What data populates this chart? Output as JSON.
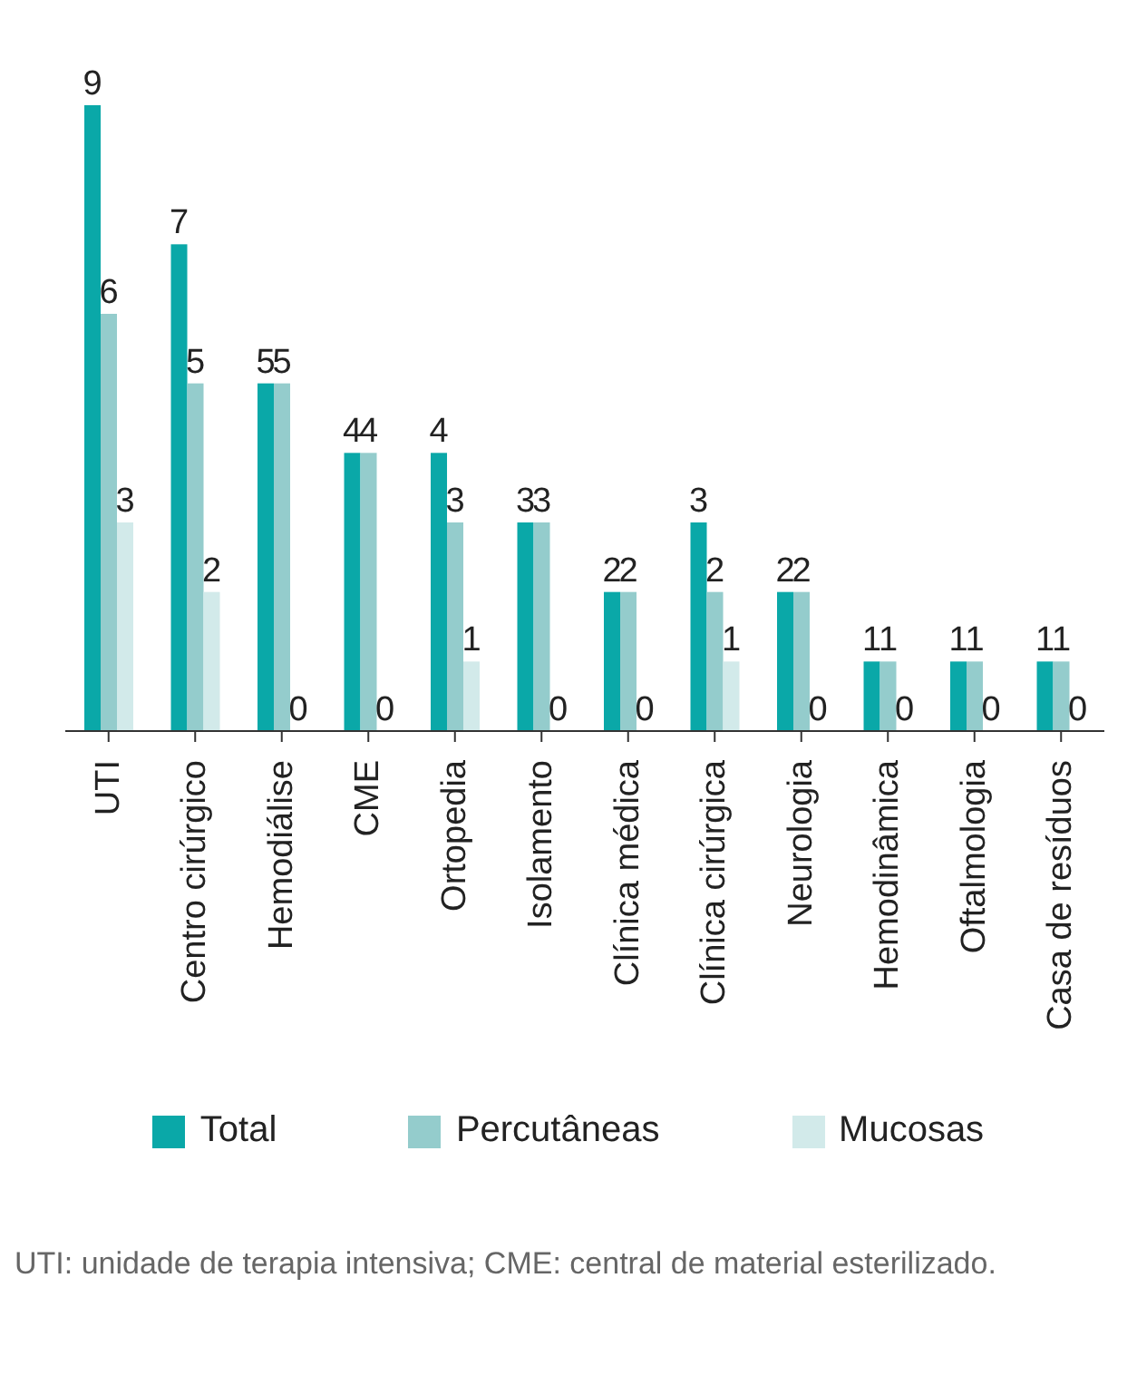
{
  "chart_data": {
    "type": "bar",
    "categories": [
      "UTI",
      "Centro cirúrgico",
      "Hemodiálise",
      "CME",
      "Ortopedia",
      "Isolamento",
      "Clínica médica",
      "Clínica cirúrgica",
      "Neurologia",
      "Hemodinâmica",
      "Oftalmologia",
      "Casa de resíduos"
    ],
    "series": [
      {
        "name": "Total",
        "color": "#0aa8a8",
        "values": [
          9,
          7,
          5,
          4,
          4,
          3,
          2,
          3,
          2,
          1,
          1,
          1
        ]
      },
      {
        "name": "Percutâneas",
        "color": "#94cccc",
        "values": [
          6,
          5,
          5,
          4,
          3,
          3,
          2,
          2,
          2,
          1,
          1,
          1
        ]
      },
      {
        "name": "Mucosas",
        "color": "#d2eaea",
        "values": [
          3,
          2,
          0,
          0,
          1,
          0,
          0,
          1,
          0,
          0,
          0,
          0
        ]
      }
    ],
    "data_labels": true,
    "legend": "bottom",
    "annotations": [
      "UTI: unidade de terapia intensiva; CME: central de material esterilizado."
    ]
  }
}
